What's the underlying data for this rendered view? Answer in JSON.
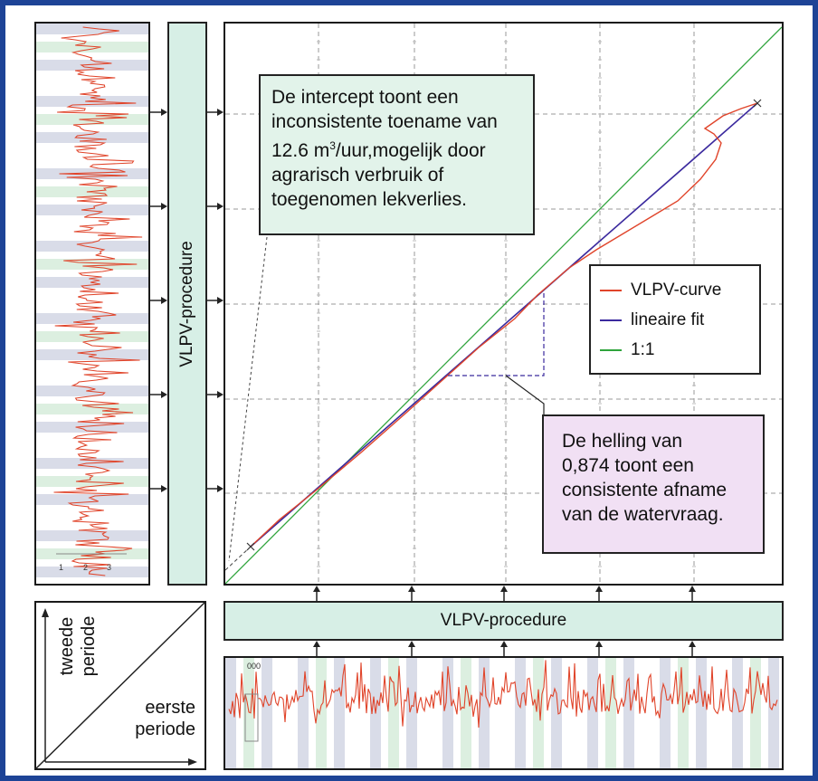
{
  "callouts": {
    "intercept": {
      "line1": "De intercept toont een",
      "line2": "inconsistente toename van",
      "line3_pre": "12.6 m",
      "line3_sup": "3",
      "line3_post": "/uur,mogelijk door",
      "line4": "agrarisch verbruik of",
      "line5": "toegenomen lekverlies."
    },
    "slope": {
      "line1": "De helling van",
      "line2": "0,874 toont een",
      "line3": "consistente afname",
      "line4": "van de watervraag."
    }
  },
  "procedure": {
    "vertical_label": "VLPV-procedure",
    "horizontal_label": "VLPV-procedure"
  },
  "legend": {
    "items": [
      {
        "label": "VLPV-curve",
        "color": "#e0442a"
      },
      {
        "label": "lineaire fit",
        "color": "#3b2a9e"
      },
      {
        "label": "1:1",
        "color": "#2fa43c"
      }
    ]
  },
  "corner": {
    "y_label_line1": "tweede",
    "y_label_line2": "periode",
    "x_label_line1": "eerste",
    "x_label_line2": "periode"
  },
  "mini_ticks": {
    "left_panel": [
      "1",
      "2",
      "3"
    ],
    "bottom_panel": "000"
  },
  "colors": {
    "frame": "#1d4396",
    "procedure_box": "#d7efe6",
    "intercept_box": "#e2f3ea",
    "slope_box": "#f1e0f4",
    "series": "#e0442a",
    "fit": "#3b2a9e",
    "identity": "#2fa43c",
    "band_grey": "#d9dce8",
    "band_green": "#dcefe0"
  }
}
